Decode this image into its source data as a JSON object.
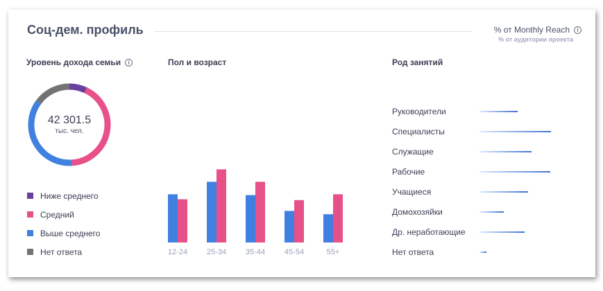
{
  "header": {
    "title": "Соц-дем. профиль",
    "metric_label": "% от Monthly Reach",
    "metric_sublabel": "% от аудитории проекта"
  },
  "income": {
    "title": "Уровень дохода семьи",
    "total": "42 301.5",
    "unit": "тыс. чел.",
    "segments": [
      {
        "label": "Ниже среднего",
        "value": 7,
        "color": "#6b3fa0"
      },
      {
        "label": "Средний",
        "value": 42,
        "color": "#e8508a"
      },
      {
        "label": "Выше среднего",
        "value": 36,
        "color": "#3f80e0"
      },
      {
        "label": "Нет ответа",
        "value": 15,
        "color": "#737373"
      }
    ]
  },
  "chart_data": {
    "type": "bar",
    "title": "Пол и возраст",
    "categories": [
      "12-24",
      "25-34",
      "35-44",
      "45-54",
      "55+"
    ],
    "series": [
      {
        "values": [
          58,
          73,
          57,
          38,
          34
        ],
        "color": "#3f80e0"
      },
      {
        "values": [
          52,
          88,
          73,
          51,
          58
        ],
        "color": "#e8508a"
      }
    ],
    "ylim": [
      0,
      100
    ]
  },
  "occupation": {
    "title": "Род занятий",
    "items": [
      {
        "label": "Руководители",
        "value": 55
      },
      {
        "label": "Специалисты",
        "value": 103
      },
      {
        "label": "Служащие",
        "value": 75
      },
      {
        "label": "Рабочие",
        "value": 102
      },
      {
        "label": "Учащиеся",
        "value": 70
      },
      {
        "label": "Домохозяйки",
        "value": 35
      },
      {
        "label": "Др. неработающие",
        "value": 65
      },
      {
        "label": "Нет ответа",
        "value": 10
      }
    ]
  },
  "icons": {
    "info": "info-icon",
    "info_glyph": "i"
  }
}
